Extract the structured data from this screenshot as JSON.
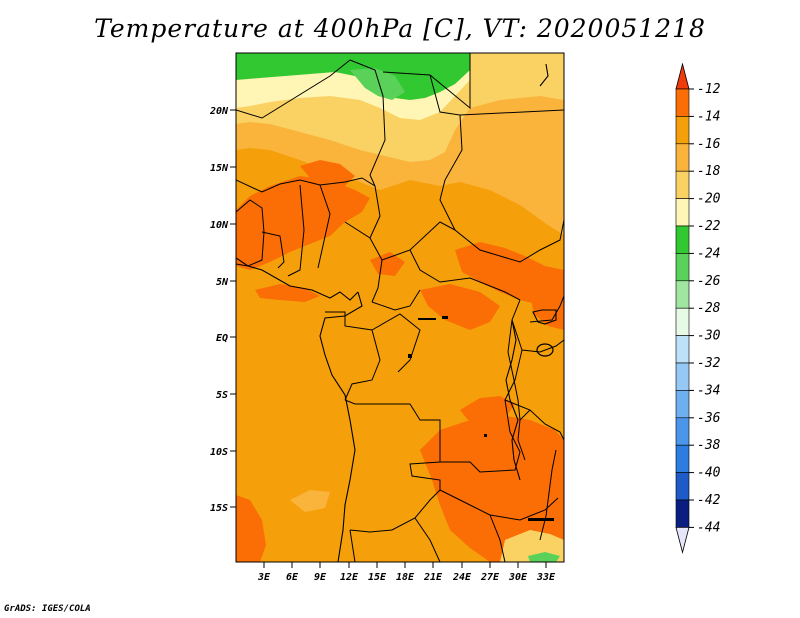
{
  "title": "Temperature at 400hPa [C], VT: 2020051218",
  "credit": "GrADS: IGES/COLA",
  "map": {
    "variable": "Temperature",
    "level": "400hPa",
    "units": "C",
    "valid_time": "2020051218",
    "lat_labels": [
      "20N",
      "15N",
      "10N",
      "5N",
      "EQ",
      "5S",
      "10S",
      "15S"
    ],
    "lon_labels": [
      "3E",
      "6E",
      "9E",
      "12E",
      "15E",
      "18E",
      "21E",
      "24E",
      "27E",
      "30E",
      "33E"
    ]
  },
  "colorbar": {
    "labels": [
      "-12",
      "-14",
      "-16",
      "-18",
      "-20",
      "-22",
      "-24",
      "-26",
      "-28",
      "-30",
      "-32",
      "-34",
      "-36",
      "-38",
      "-40",
      "-42",
      "-44"
    ],
    "colors": [
      "#f03c0a",
      "#fa6e05",
      "#f5a00a",
      "#fab43c",
      "#fad264",
      "#fff5b4",
      "#32c832",
      "#5ad25a",
      "#a0e6a0",
      "#e6fae6",
      "#bee1fa",
      "#96c8f5",
      "#6eaff0",
      "#4b96eb",
      "#2d7de1",
      "#1e5ac8",
      "#0a1e82"
    ],
    "top_arrow_color": "#f03c0a",
    "bottom_arrow_color": "#e6e6fa"
  },
  "colors": {
    "warm_orange": "#f5a00a",
    "dark_orange": "#fa6e05",
    "red_orange": "#f03c0a",
    "light_orange": "#fab43c",
    "yellow": "#fad264",
    "pale_yellow": "#fff5b4",
    "green": "#32c832",
    "light_green": "#5ad25a"
  }
}
